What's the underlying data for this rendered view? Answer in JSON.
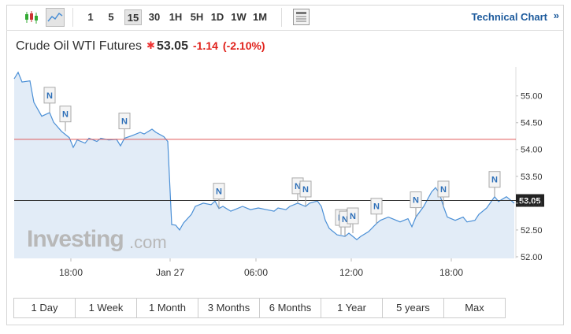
{
  "toolbar": {
    "intervals": [
      "1",
      "5",
      "15",
      "30",
      "1H",
      "5H",
      "1D",
      "1W",
      "1M"
    ],
    "selected": 2,
    "link": "Technical Chart"
  },
  "header": {
    "title": "Crude Oil WTI Futures",
    "price": 53.05,
    "change": -1.14,
    "change_pct": "(-2.10%)"
  },
  "chart_data": {
    "type": "line",
    "color": "#4a8fd6",
    "area_color": "#e2ecf7",
    "x": [
      0,
      1,
      2,
      4,
      5,
      7,
      9,
      10,
      12,
      14,
      15,
      16,
      18,
      19,
      21,
      22,
      24,
      26,
      27,
      28,
      30,
      32,
      33,
      35,
      36,
      38,
      39,
      40,
      41,
      42,
      43,
      45,
      46,
      48,
      50,
      51,
      52,
      53,
      55,
      56,
      58,
      60,
      62,
      64,
      66,
      67,
      69,
      70,
      72,
      74,
      75,
      77,
      78,
      79,
      80,
      82,
      84,
      85,
      87,
      88,
      90,
      92,
      93,
      95,
      96,
      98,
      100,
      101,
      102,
      104,
      106,
      107,
      108,
      109,
      110,
      112,
      114,
      115,
      117,
      118,
      120,
      122,
      123,
      125,
      126,
      127
    ],
    "values": [
      55.32,
      55.44,
      55.26,
      55.28,
      54.88,
      54.62,
      54.69,
      54.51,
      54.34,
      54.22,
      54.04,
      54.18,
      54.12,
      54.21,
      54.15,
      54.21,
      54.18,
      54.19,
      54.07,
      54.21,
      54.26,
      54.32,
      54.29,
      54.38,
      54.32,
      54.24,
      54.15,
      52.6,
      52.59,
      52.5,
      52.63,
      52.79,
      52.94,
      53.0,
      52.97,
      53.04,
      52.9,
      52.94,
      52.85,
      52.88,
      52.94,
      52.88,
      52.91,
      52.88,
      52.85,
      52.91,
      52.88,
      52.94,
      53.0,
      52.94,
      53.0,
      53.04,
      52.94,
      52.68,
      52.53,
      52.41,
      52.38,
      52.44,
      52.32,
      52.38,
      52.47,
      52.62,
      52.68,
      52.74,
      52.71,
      52.65,
      52.71,
      52.56,
      52.74,
      52.94,
      53.21,
      53.29,
      53.18,
      52.94,
      52.74,
      52.68,
      52.74,
      52.65,
      52.68,
      52.79,
      52.91,
      53.12,
      53.03,
      53.12,
      53.06,
      53.0
    ],
    "xlim": [
      0,
      127
    ],
    "ylim": [
      51.97,
      55.54
    ],
    "xticks": [
      {
        "value": 14.4,
        "label": "18:00"
      },
      {
        "value": 39.6,
        "label": "Jan 27"
      },
      {
        "value": 61.4,
        "label": "06:00"
      },
      {
        "value": 85.6,
        "label": "12:00"
      },
      {
        "value": 111,
        "label": "18:00"
      }
    ],
    "yticks": [
      {
        "value": 52,
        "label": "52.00"
      },
      {
        "value": 52.5,
        "label": "52.50"
      },
      {
        "value": 53,
        "label": "53.00"
      },
      {
        "value": 53.5,
        "label": "53.50"
      },
      {
        "value": 54,
        "label": "54.00"
      },
      {
        "value": 54.5,
        "label": "54.50"
      },
      {
        "value": 55,
        "label": "55.00"
      }
    ],
    "grid": false,
    "prev_close": 54.19,
    "prev_close_color": "#e05a5a",
    "events": [
      {
        "x": 9,
        "label": "N"
      },
      {
        "x": 13,
        "label": "N"
      },
      {
        "x": 28,
        "label": "N"
      },
      {
        "x": 52,
        "label": "N"
      },
      {
        "x": 72,
        "label": "N"
      },
      {
        "x": 74,
        "label": "N"
      },
      {
        "x": 83,
        "label": "N"
      },
      {
        "x": 84,
        "label": "N"
      },
      {
        "x": 86,
        "label": "N"
      },
      {
        "x": 92,
        "label": "N"
      },
      {
        "x": 102,
        "label": "N"
      },
      {
        "x": 109,
        "label": "N"
      },
      {
        "x": 122,
        "label": "N"
      }
    ],
    "watermark": "Investing",
    "watermark_suffix": ".com"
  },
  "ranges": [
    "1 Day",
    "1 Week",
    "1 Month",
    "3 Months",
    "6 Months",
    "1 Year",
    "5 years",
    "Max"
  ]
}
